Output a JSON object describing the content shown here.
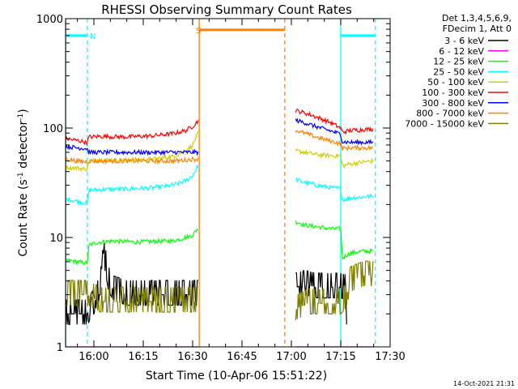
{
  "chart_data": {
    "type": "line",
    "title": "RHESSI Observing Summary Count Rates",
    "xlabel": "Start Time (10-Apr-06 15:51:22)",
    "ylabel_parts": {
      "pre": "Count Rate (s",
      "sup1": "-1",
      "mid": " detector",
      "sup2": "-1",
      "post": ")"
    },
    "yscale": "log",
    "ylim": [
      1,
      1000
    ],
    "xlim_minutes": [
      951.4,
      1050.0
    ],
    "x_ticks": [
      {
        "label": "16:00",
        "min": 960
      },
      {
        "label": "16:15",
        "min": 975
      },
      {
        "label": "16:30",
        "min": 990
      },
      {
        "label": "16:45",
        "min": 1005
      },
      {
        "label": "17:00",
        "min": 1020
      },
      {
        "label": "17:15",
        "min": 1035
      },
      {
        "label": "17:30",
        "min": 1050
      }
    ],
    "y_ticks": [
      {
        "label": "1",
        "v": 1
      },
      {
        "label": "10",
        "v": 10
      },
      {
        "label": "100",
        "v": 100
      },
      {
        "label": "1000",
        "v": 1000
      }
    ],
    "legend_header": [
      "Det 1,3,4,5,6,9,",
      "FDecim 1, Att 0"
    ],
    "legend_placement": "right",
    "footer_date": "14-Oct-2021 21:31",
    "segments": [
      [
        951.4,
        991.8
      ],
      [
        1021.3,
        1045.0
      ]
    ],
    "series": [
      {
        "name": "3 - 6 keV",
        "color": "#000000",
        "values": [
          [
            [
              951.4,
              2
            ],
            [
              958,
              2
            ],
            [
              960,
              2.5
            ],
            [
              961,
              3
            ],
            [
              962,
              3
            ],
            [
              962.5,
              8
            ],
            [
              963.5,
              6
            ],
            [
              964.5,
              4
            ],
            [
              966,
              3.3
            ],
            [
              970,
              3
            ],
            [
              975,
              3
            ],
            [
              980,
              3
            ],
            [
              985,
              3
            ],
            [
              990,
              3
            ],
            [
              991.8,
              3
            ]
          ],
          [
            [
              1021.3,
              3.5
            ],
            [
              1024,
              3.7
            ],
            [
              1028,
              3.5
            ],
            [
              1032,
              3.5
            ],
            [
              1035,
              3.5
            ],
            [
              1036.5,
              3.4
            ],
            [
              1036.8,
              1.6
            ],
            [
              1037,
              1
            ]
          ]
        ]
      },
      {
        "name": "6 - 12 keV",
        "color": "#ff00ff",
        "values": [
          [
            [
              951.4,
              1
            ],
            [
              958,
              1
            ],
            [
              961,
              1
            ],
            [
              964,
              1
            ],
            [
              970,
              1
            ],
            [
              980,
              1
            ],
            [
              990,
              1
            ],
            [
              991.8,
              1
            ]
          ],
          [
            [
              1021.3,
              1
            ],
            [
              1028,
              1
            ],
            [
              1035,
              1
            ],
            [
              1036.5,
              1
            ],
            [
              1037.5,
              1
            ],
            [
              1045,
              1
            ]
          ]
        ]
      },
      {
        "name": "12 - 25 keV",
        "color": "#00ff00",
        "values": [
          [
            [
              951.4,
              6.2
            ],
            [
              955,
              6
            ],
            [
              958,
              5.8
            ],
            [
              958.5,
              8.5
            ],
            [
              961,
              9
            ],
            [
              966,
              9.3
            ],
            [
              972,
              9.1
            ],
            [
              978,
              9.2
            ],
            [
              984,
              9.3
            ],
            [
              988,
              10
            ],
            [
              990,
              10.5
            ],
            [
              991.5,
              12
            ],
            [
              991.8,
              12
            ]
          ],
          [
            [
              1021.3,
              14
            ],
            [
              1024,
              13
            ],
            [
              1028,
              12.5
            ],
            [
              1032,
              12
            ],
            [
              1035,
              12
            ],
            [
              1035.5,
              6.5
            ],
            [
              1038,
              7.2
            ],
            [
              1042,
              7.5
            ],
            [
              1045,
              7.5
            ]
          ]
        ]
      },
      {
        "name": "25 - 50 keV",
        "color": "#00ffff",
        "values": [
          [
            [
              951.4,
              22.5
            ],
            [
              955,
              21.5
            ],
            [
              958,
              20.5
            ],
            [
              958.5,
              27
            ],
            [
              962,
              27.5
            ],
            [
              970,
              27.8
            ],
            [
              978,
              28.5
            ],
            [
              984,
              30
            ],
            [
              988,
              33
            ],
            [
              990,
              37
            ],
            [
              991.5,
              44
            ],
            [
              991.8,
              46
            ]
          ],
          [
            [
              1021.3,
              34
            ],
            [
              1024,
              32
            ],
            [
              1028,
              30
            ],
            [
              1032,
              28.5
            ],
            [
              1035,
              28
            ],
            [
              1035.5,
              22
            ],
            [
              1038,
              23
            ],
            [
              1042,
              23.5
            ],
            [
              1045,
              24
            ]
          ]
        ]
      },
      {
        "name": "50 - 100 keV",
        "color": "#d0d000",
        "values": [
          [
            [
              951.4,
              44
            ],
            [
              955,
              43
            ],
            [
              958,
              42
            ],
            [
              958.5,
              50
            ],
            [
              962,
              51
            ],
            [
              970,
              51
            ],
            [
              978,
              52
            ],
            [
              984,
              55
            ],
            [
              988,
              62
            ],
            [
              990,
              70
            ],
            [
              991.5,
              88
            ],
            [
              991.8,
              92
            ]
          ],
          [
            [
              1021.3,
              62
            ],
            [
              1024,
              60
            ],
            [
              1028,
              57
            ],
            [
              1032,
              56
            ],
            [
              1035,
              56
            ],
            [
              1035.5,
              45
            ],
            [
              1038,
              47
            ],
            [
              1042,
              49
            ],
            [
              1045,
              50
            ]
          ]
        ]
      },
      {
        "name": "100 - 300 keV",
        "color": "#ff0000",
        "values": [
          [
            [
              951.4,
              80
            ],
            [
              955,
              77
            ],
            [
              958,
              74
            ],
            [
              958.5,
              83
            ],
            [
              962,
              84
            ],
            [
              970,
              83
            ],
            [
              978,
              85
            ],
            [
              984,
              89
            ],
            [
              988,
              95
            ],
            [
              990,
              104
            ],
            [
              991.5,
              115
            ],
            [
              991.8,
              117
            ]
          ],
          [
            [
              1021.3,
              145
            ],
            [
              1024,
              138
            ],
            [
              1028,
              125
            ],
            [
              1032,
              112
            ],
            [
              1035,
              100
            ],
            [
              1035.5,
              92
            ],
            [
              1038,
              95
            ],
            [
              1042,
              97
            ],
            [
              1045,
              98
            ]
          ]
        ]
      },
      {
        "name": "300 - 800 keV",
        "color": "#0000ff",
        "values": [
          [
            [
              951.4,
              68
            ],
            [
              955,
              66
            ],
            [
              958,
              65
            ],
            [
              958.5,
              60
            ],
            [
              962,
              60
            ],
            [
              970,
              60
            ],
            [
              978,
              60
            ],
            [
              984,
              60
            ],
            [
              988,
              60
            ],
            [
              990,
              60
            ],
            [
              991.8,
              60
            ]
          ],
          [
            [
              1021.3,
              118
            ],
            [
              1024,
              112
            ],
            [
              1028,
              102
            ],
            [
              1032,
              94
            ],
            [
              1035,
              88
            ],
            [
              1035.5,
              75
            ],
            [
              1038,
              74
            ],
            [
              1042,
              74
            ],
            [
              1045,
              74
            ]
          ]
        ]
      },
      {
        "name": "800 - 7000 keV",
        "color": "#ff8000",
        "values": [
          [
            [
              951.4,
              52
            ],
            [
              955,
              50
            ],
            [
              958,
              49
            ],
            [
              958.5,
              50
            ],
            [
              962,
              50
            ],
            [
              970,
              50
            ],
            [
              978,
              50
            ],
            [
              984,
              50
            ],
            [
              988,
              51
            ],
            [
              990,
              52
            ],
            [
              991.8,
              52
            ]
          ],
          [
            [
              1021.3,
              95
            ],
            [
              1024,
              90
            ],
            [
              1028,
              82
            ],
            [
              1032,
              76
            ],
            [
              1035,
              72
            ],
            [
              1035.5,
              65
            ],
            [
              1038,
              66
            ],
            [
              1042,
              66
            ],
            [
              1045,
              66
            ]
          ]
        ]
      },
      {
        "name": "7000 - 15000 keV",
        "color": "#808000",
        "values": [
          [
            [
              951.4,
              3
            ],
            [
              955,
              3
            ],
            [
              958,
              3
            ],
            [
              962,
              2.6
            ],
            [
              970,
              2.6
            ],
            [
              980,
              2.6
            ],
            [
              990,
              2.6
            ],
            [
              991.8,
              2.6
            ]
          ],
          [
            [
              1021.3,
              2.2
            ],
            [
              1025,
              2.5
            ],
            [
              1030,
              2.5
            ],
            [
              1035,
              2.5
            ],
            [
              1036.5,
              2.8
            ],
            [
              1038,
              4
            ],
            [
              1042,
              4.5
            ],
            [
              1045,
              4.5
            ]
          ]
        ]
      }
    ],
    "flags": [
      {
        "code": "N",
        "color": "#00ffff",
        "intervals": [
          [
            951.4,
            958
          ]
        ],
        "level": 700,
        "label_min": 958.8
      },
      {
        "code": "N",
        "color": "#00ffff",
        "intervals": [
          [
            1035,
            1045.5
          ]
        ],
        "level": 700,
        "label_min": null
      },
      {
        "code": "S",
        "color": "#ff8000",
        "intervals": [
          [
            992,
            1018
          ]
        ],
        "level": 790,
        "label_min": 991.0
      }
    ],
    "vlines": [
      {
        "min": 951.5,
        "color": "#00ffff",
        "style": "solid"
      },
      {
        "min": 958.0,
        "color": "#00ffff",
        "style": "dashed"
      },
      {
        "min": 992.0,
        "color": "#ff8000",
        "style": "solid"
      },
      {
        "min": 1018.0,
        "color": "#ff8000",
        "style": "dashed"
      },
      {
        "min": 1035.0,
        "color": "#00ffff",
        "style": "solid"
      },
      {
        "min": 1045.5,
        "color": "#00ffff",
        "style": "dashed"
      }
    ]
  }
}
